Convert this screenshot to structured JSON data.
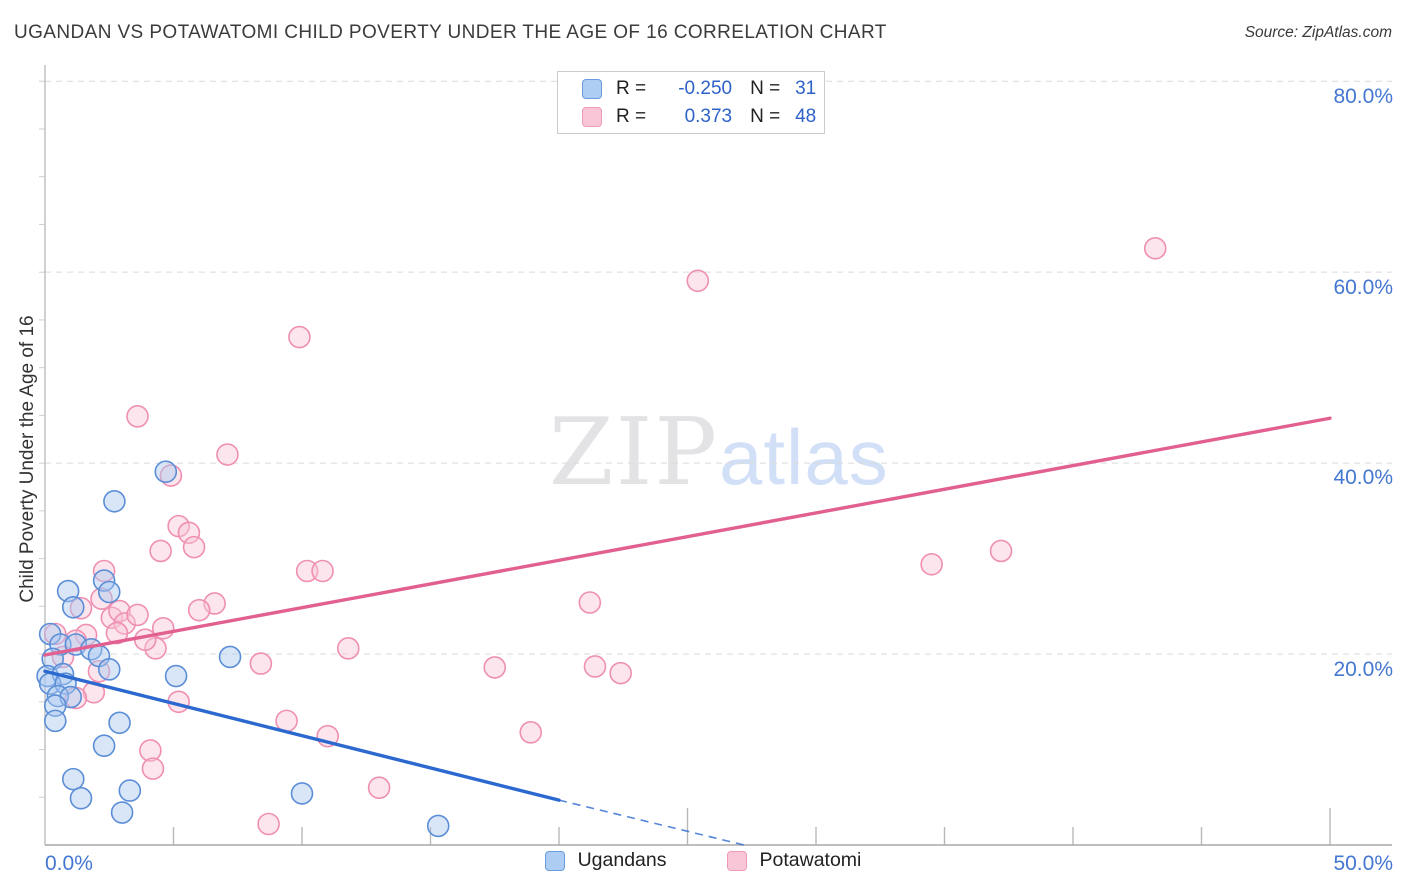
{
  "header": {
    "title": "UGANDAN VS POTAWATOMI CHILD POVERTY UNDER THE AGE OF 16 CORRELATION CHART",
    "source": "Source: ZipAtlas.com"
  },
  "legend_box": {
    "rows": [
      {
        "r_label": "R =",
        "r_value": "-0.250",
        "n_label": "N =",
        "n_value": "31"
      },
      {
        "r_label": "R =",
        "r_value": "0.373",
        "n_label": "N =",
        "n_value": "48"
      }
    ]
  },
  "bottom_legend": {
    "items": [
      {
        "label": "Ugandans",
        "color": "#aecdf2",
        "edge": "#6a9ae0"
      },
      {
        "label": "Potawatomi",
        "color": "#f9c6d8",
        "edge": "#ef9ab8"
      }
    ]
  },
  "watermark": {
    "part1": "ZIP",
    "part2": "atlas"
  },
  "chart_data": {
    "type": "scatter",
    "title": "UGANDAN VS POTAWATOMI CHILD POVERTY UNDER THE AGE OF 16 CORRELATION CHART",
    "xlabel": "",
    "ylabel": "Child Poverty Under the Age of 16",
    "xlim": [
      0,
      50
    ],
    "ylim": [
      0,
      81.7
    ],
    "grid": "horizontal-dashed",
    "legend_position": "bottom-center",
    "x_ticks": [
      0,
      5,
      10,
      15,
      20,
      25,
      30,
      35,
      40,
      45,
      50
    ],
    "x_tick_labels": [
      "0.0%",
      "50.0%"
    ],
    "y_gridlines": [
      20,
      40,
      60,
      80
    ],
    "y_tick_labels": [
      "20.0%",
      "40.0%",
      "60.0%",
      "80.0%"
    ],
    "series": [
      {
        "name": "Ugandans",
        "r": -0.25,
        "n": 31,
        "fill": "#a8c8f0",
        "edge": "#5b8ed6",
        "points": [
          [
            0.9,
            26.6
          ],
          [
            1.1,
            24.9
          ],
          [
            2.3,
            27.7
          ],
          [
            2.5,
            26.5
          ],
          [
            2.7,
            36.0
          ],
          [
            4.7,
            39.1
          ],
          [
            0.2,
            22.1
          ],
          [
            0.6,
            21.0
          ],
          [
            1.2,
            21.0
          ],
          [
            1.8,
            20.5
          ],
          [
            2.1,
            19.8
          ],
          [
            2.5,
            18.4
          ],
          [
            0.3,
            19.5
          ],
          [
            0.1,
            17.7
          ],
          [
            0.7,
            17.9
          ],
          [
            0.2,
            16.9
          ],
          [
            0.8,
            16.9
          ],
          [
            0.5,
            15.6
          ],
          [
            1.0,
            15.5
          ],
          [
            0.4,
            14.6
          ],
          [
            0.4,
            13.0
          ],
          [
            2.9,
            12.8
          ],
          [
            2.3,
            10.4
          ],
          [
            1.1,
            6.9
          ],
          [
            1.4,
            4.9
          ],
          [
            3.3,
            5.7
          ],
          [
            3.0,
            3.4
          ],
          [
            7.2,
            19.7
          ],
          [
            5.1,
            17.7
          ],
          [
            10.0,
            5.4
          ],
          [
            15.3,
            2.0
          ]
        ]
      },
      {
        "name": "Potawatomi",
        "r": 0.373,
        "n": 48,
        "fill": "#f8c6d7",
        "edge": "#ef8fb2",
        "points": [
          [
            43.2,
            62.5
          ],
          [
            25.4,
            59.1
          ],
          [
            9.9,
            53.2
          ],
          [
            3.6,
            44.9
          ],
          [
            7.1,
            40.9
          ],
          [
            4.9,
            38.7
          ],
          [
            5.2,
            33.4
          ],
          [
            5.6,
            32.7
          ],
          [
            5.8,
            31.2
          ],
          [
            4.5,
            30.8
          ],
          [
            10.2,
            28.7
          ],
          [
            10.8,
            28.7
          ],
          [
            2.3,
            28.7
          ],
          [
            34.5,
            29.4
          ],
          [
            37.2,
            30.8
          ],
          [
            1.4,
            24.8
          ],
          [
            6.6,
            25.3
          ],
          [
            6.0,
            24.6
          ],
          [
            2.6,
            23.8
          ],
          [
            2.9,
            24.5
          ],
          [
            3.1,
            23.2
          ],
          [
            3.6,
            24.1
          ],
          [
            4.6,
            22.7
          ],
          [
            2.8,
            22.2
          ],
          [
            1.6,
            22.0
          ],
          [
            4.3,
            20.6
          ],
          [
            0.7,
            19.7
          ],
          [
            2.1,
            18.2
          ],
          [
            1.9,
            16.0
          ],
          [
            1.2,
            15.4
          ],
          [
            5.2,
            15.0
          ],
          [
            9.4,
            13.0
          ],
          [
            11.0,
            11.4
          ],
          [
            4.1,
            9.9
          ],
          [
            4.2,
            8.0
          ],
          [
            13.0,
            6.0
          ],
          [
            8.7,
            2.2
          ],
          [
            21.2,
            25.4
          ],
          [
            17.5,
            18.6
          ],
          [
            21.4,
            18.7
          ],
          [
            22.4,
            18.0
          ],
          [
            18.9,
            11.8
          ],
          [
            8.4,
            19.0
          ],
          [
            11.8,
            20.6
          ],
          [
            0.4,
            22.1
          ],
          [
            1.2,
            21.4
          ],
          [
            3.9,
            21.5
          ],
          [
            2.2,
            25.8
          ]
        ]
      }
    ],
    "trend_lines": [
      {
        "series": "Ugandans",
        "color": "#2b68cf",
        "solid": [
          [
            0,
            18.2
          ],
          [
            20,
            4.7
          ]
        ],
        "dashed": [
          [
            20,
            4.7
          ],
          [
            27.2,
            0
          ]
        ]
      },
      {
        "series": "Potawatomi",
        "color": "#e2608f",
        "solid": [
          [
            0,
            19.9
          ],
          [
            50,
            44.7
          ]
        ]
      }
    ]
  }
}
